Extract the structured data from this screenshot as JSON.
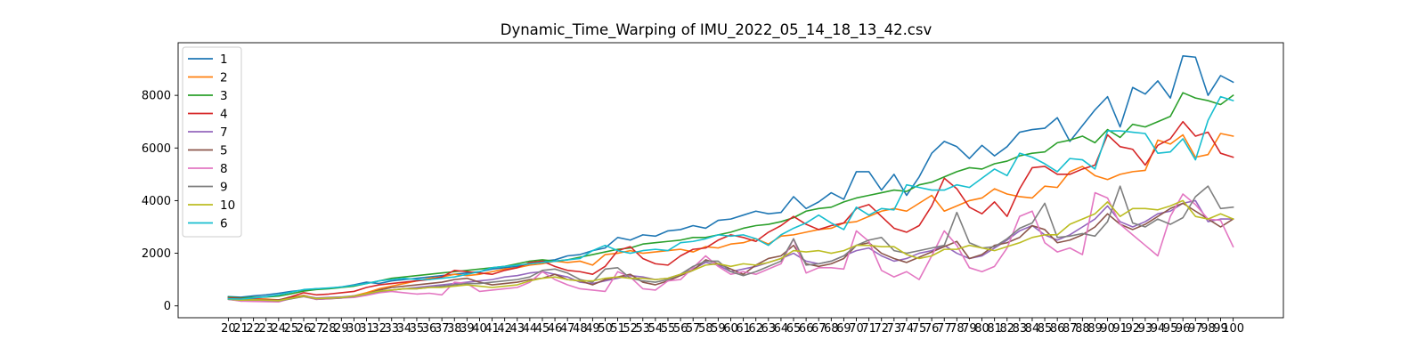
{
  "chart_data": {
    "type": "line",
    "title": "Dynamic_Time_Warping of IMU_2022_05_14_18_13_42.csv",
    "xlabel": "",
    "ylabel": "",
    "x": [
      20,
      21,
      22,
      23,
      24,
      25,
      26,
      27,
      28,
      29,
      30,
      31,
      32,
      33,
      34,
      35,
      36,
      37,
      38,
      39,
      40,
      41,
      42,
      43,
      44,
      45,
      46,
      47,
      48,
      49,
      50,
      51,
      52,
      53,
      54,
      55,
      56,
      57,
      58,
      59,
      60,
      61,
      62,
      63,
      64,
      65,
      66,
      67,
      68,
      69,
      70,
      71,
      72,
      73,
      74,
      75,
      76,
      77,
      78,
      79,
      80,
      81,
      82,
      83,
      84,
      85,
      86,
      87,
      88,
      89,
      90,
      91,
      92,
      93,
      94,
      95,
      96,
      97,
      98,
      99,
      100
    ],
    "x_tick_labels": [
      "20",
      "21",
      "22",
      "23",
      "24",
      "25",
      "26",
      "27",
      "28",
      "29",
      "30",
      "31",
      "32",
      "33",
      "34",
      "35",
      "36",
      "37",
      "38",
      "39",
      "40",
      "41",
      "42",
      "43",
      "44",
      "45",
      "46",
      "47",
      "48",
      "49",
      "50",
      "51",
      "52",
      "53",
      "54",
      "55",
      "56",
      "57",
      "58",
      "59",
      "60",
      "61",
      "62",
      "63",
      "64",
      "65",
      "66",
      "67",
      "68",
      "69",
      "70",
      "71",
      "72",
      "73",
      "74",
      "75",
      "76",
      "77",
      "78",
      "79",
      "80",
      "81",
      "82",
      "83",
      "84",
      "85",
      "86",
      "87",
      "88",
      "89",
      "90",
      "91",
      "92",
      "93",
      "94",
      "95",
      "96",
      "97",
      "98",
      "99",
      "100"
    ],
    "y_ticks": [
      0,
      2000,
      4000,
      6000,
      8000
    ],
    "y_tick_labels": [
      "0",
      "2000",
      "4000",
      "6000",
      "8000"
    ],
    "ylim": [
      -450,
      10000
    ],
    "grid": false,
    "legend_placement": "upper-left",
    "series": [
      {
        "name": "1",
        "color": "#1f77b4",
        "values": [
          350,
          330,
          380,
          420,
          480,
          550,
          600,
          650,
          670,
          720,
          800,
          900,
          850,
          950,
          1000,
          1050,
          1100,
          1150,
          1200,
          1250,
          1300,
          1400,
          1450,
          1500,
          1600,
          1700,
          1750,
          1900,
          1950,
          2100,
          2200,
          2600,
          2500,
          2700,
          2650,
          2850,
          2900,
          3050,
          2950,
          3250,
          3300,
          3450,
          3600,
          3500,
          3550,
          4150,
          3700,
          3950,
          4300,
          4050,
          5100,
          5100,
          4400,
          5000,
          4200,
          4900,
          5800,
          6250,
          6050,
          5600,
          6100,
          5700,
          6050,
          6600,
          6700,
          6750,
          7150,
          6250,
          6850,
          7450,
          7950,
          6800,
          8300,
          8050,
          8550,
          7900,
          9500,
          9450,
          8000,
          8750,
          8500
        ]
      },
      {
        "name": "2",
        "color": "#ff7f0e",
        "values": [
          280,
          250,
          270,
          260,
          230,
          320,
          400,
          280,
          300,
          320,
          380,
          500,
          650,
          750,
          850,
          950,
          1050,
          1100,
          1200,
          1150,
          1200,
          1300,
          1400,
          1450,
          1550,
          1600,
          1700,
          1650,
          1700,
          1550,
          1950,
          2000,
          2100,
          2000,
          2050,
          2100,
          2150,
          2050,
          2250,
          2200,
          2350,
          2400,
          2550,
          2350,
          2650,
          2700,
          2800,
          2900,
          2950,
          3150,
          3200,
          3400,
          3600,
          3700,
          3600,
          3900,
          4200,
          3600,
          3800,
          4000,
          4100,
          4450,
          4250,
          4150,
          4100,
          4550,
          4500,
          5100,
          5300,
          4950,
          4800,
          5000,
          5100,
          5150,
          6300,
          6150,
          6500,
          5650,
          5750,
          6550,
          6450
        ]
      },
      {
        "name": "3",
        "color": "#2ca02c",
        "values": [
          330,
          300,
          320,
          340,
          370,
          460,
          560,
          620,
          650,
          700,
          750,
          850,
          950,
          1050,
          1100,
          1150,
          1200,
          1250,
          1300,
          1350,
          1400,
          1450,
          1500,
          1600,
          1700,
          1750,
          1700,
          1750,
          1850,
          1950,
          2050,
          2150,
          2200,
          2350,
          2400,
          2450,
          2500,
          2600,
          2600,
          2700,
          2800,
          2950,
          3050,
          3100,
          3200,
          3350,
          3600,
          3700,
          3750,
          3950,
          4100,
          4200,
          4300,
          4400,
          4350,
          4600,
          4700,
          4900,
          5100,
          5250,
          5200,
          5400,
          5500,
          5700,
          5800,
          5850,
          6200,
          6300,
          6450,
          6200,
          6700,
          6400,
          6900,
          6800,
          7000,
          7200,
          8100,
          7900,
          7800,
          7650,
          8000
        ]
      },
      {
        "name": "4",
        "color": "#d62728",
        "values": [
          300,
          280,
          260,
          240,
          220,
          350,
          500,
          420,
          450,
          500,
          550,
          700,
          800,
          850,
          900,
          950,
          1000,
          1100,
          1350,
          1300,
          1250,
          1200,
          1350,
          1450,
          1650,
          1700,
          1500,
          1350,
          1300,
          1200,
          1500,
          2100,
          2250,
          1800,
          1600,
          1550,
          1900,
          2150,
          2200,
          2500,
          2700,
          2600,
          2450,
          2800,
          3050,
          3400,
          3100,
          2900,
          3050,
          3150,
          3700,
          3850,
          3400,
          2950,
          2800,
          3050,
          3800,
          4850,
          4450,
          3750,
          3500,
          3950,
          3400,
          4450,
          5250,
          5300,
          5000,
          5000,
          5200,
          5350,
          6500,
          6050,
          5950,
          5350,
          6100,
          6350,
          7000,
          6450,
          6600,
          5800,
          5650
        ]
      },
      {
        "name": "7",
        "color": "#9467bd",
        "values": [
          280,
          180,
          200,
          190,
          210,
          280,
          380,
          300,
          320,
          340,
          380,
          450,
          550,
          600,
          650,
          700,
          750,
          800,
          850,
          900,
          950,
          1000,
          1100,
          1150,
          1250,
          1300,
          1200,
          1100,
          900,
          850,
          950,
          1050,
          1150,
          1100,
          1000,
          1050,
          1200,
          1400,
          1650,
          1550,
          1300,
          1400,
          1500,
          1650,
          1800,
          2000,
          1700,
          1600,
          1700,
          1900,
          2100,
          2200,
          1900,
          1700,
          1800,
          2000,
          2100,
          2300,
          2000,
          1800,
          1900,
          2200,
          2500,
          2850,
          3050,
          2700,
          2500,
          2700,
          3000,
          3300,
          3800,
          3200,
          3000,
          3200,
          3500,
          3600,
          3900,
          4000,
          3200,
          3300,
          3300
        ]
      },
      {
        "name": "5",
        "color": "#8c564b",
        "values": [
          250,
          200,
          210,
          220,
          230,
          300,
          380,
          250,
          270,
          300,
          350,
          450,
          600,
          700,
          750,
          800,
          850,
          900,
          1000,
          1050,
          900,
          800,
          850,
          900,
          1000,
          1050,
          1200,
          1000,
          950,
          800,
          1000,
          1100,
          1200,
          900,
          800,
          950,
          1150,
          1350,
          1750,
          1600,
          1400,
          1200,
          1550,
          1800,
          1900,
          2300,
          1600,
          1500,
          1600,
          1800,
          2300,
          2400,
          2000,
          1800,
          1650,
          1850,
          2050,
          2250,
          2450,
          1800,
          1950,
          2300,
          2400,
          2600,
          3050,
          2900,
          2400,
          2500,
          2700,
          3000,
          3500,
          3100,
          2900,
          3100,
          3400,
          3700,
          3900,
          3600,
          3300,
          3000,
          3300
        ]
      },
      {
        "name": "8",
        "color": "#e377c2",
        "values": [
          250,
          180,
          170,
          160,
          150,
          280,
          350,
          250,
          280,
          300,
          320,
          400,
          500,
          550,
          500,
          450,
          480,
          420,
          900,
          850,
          550,
          600,
          650,
          700,
          900,
          1300,
          1000,
          800,
          650,
          600,
          550,
          1300,
          1100,
          650,
          600,
          950,
          1000,
          1450,
          1900,
          1500,
          1200,
          1300,
          1200,
          1400,
          1600,
          2550,
          1250,
          1450,
          1450,
          1400,
          2850,
          2450,
          1350,
          1100,
          1300,
          1000,
          1900,
          2850,
          2300,
          1450,
          1300,
          1500,
          2200,
          3400,
          3600,
          2400,
          2050,
          2200,
          1950,
          4300,
          4100,
          3100,
          2700,
          2300,
          1900,
          3400,
          4250,
          3850,
          3300,
          3250,
          2250
        ]
      },
      {
        "name": "9",
        "color": "#7f7f7f",
        "values": [
          250,
          220,
          230,
          210,
          190,
          270,
          360,
          270,
          290,
          310,
          360,
          450,
          550,
          600,
          650,
          650,
          700,
          750,
          800,
          850,
          850,
          900,
          950,
          1000,
          1100,
          1350,
          1400,
          1250,
          1000,
          900,
          1400,
          1450,
          1050,
          950,
          900,
          1000,
          1200,
          1500,
          1700,
          1700,
          1300,
          1150,
          1300,
          1500,
          1700,
          2550,
          1550,
          1600,
          1700,
          1900,
          2300,
          2500,
          2600,
          2100,
          2000,
          2100,
          2200,
          2300,
          3550,
          2400,
          2200,
          2250,
          2550,
          2950,
          3150,
          3900,
          2600,
          2650,
          2750,
          2650,
          3200,
          4550,
          3150,
          3000,
          3300,
          3100,
          3350,
          4150,
          4550,
          3700,
          3750
        ]
      },
      {
        "name": "10",
        "color": "#bcbd22",
        "values": [
          260,
          220,
          230,
          220,
          200,
          290,
          370,
          280,
          300,
          320,
          370,
          460,
          560,
          600,
          650,
          650,
          700,
          700,
          750,
          800,
          750,
          700,
          750,
          800,
          950,
          1050,
          1100,
          1000,
          950,
          950,
          1050,
          1100,
          1050,
          1050,
          1000,
          1050,
          1200,
          1350,
          1550,
          1600,
          1500,
          1600,
          1550,
          1650,
          1800,
          2100,
          2050,
          2100,
          2000,
          2100,
          2300,
          2300,
          2250,
          2250,
          1950,
          1800,
          1900,
          2150,
          2150,
          2300,
          2200,
          2100,
          2250,
          2400,
          2600,
          2700,
          2700,
          3100,
          3300,
          3500,
          3950,
          3400,
          3700,
          3700,
          3650,
          3800,
          4000,
          3400,
          3300,
          3500,
          3300
        ]
      },
      {
        "name": "6",
        "color": "#17becf",
        "values": [
          270,
          260,
          300,
          350,
          420,
          520,
          620,
          650,
          680,
          720,
          780,
          850,
          950,
          1000,
          1050,
          1000,
          1000,
          1050,
          1100,
          1200,
          1300,
          1450,
          1500,
          1550,
          1600,
          1650,
          1700,
          1750,
          1800,
          2100,
          2300,
          2100,
          2000,
          2100,
          2150,
          2100,
          2400,
          2450,
          2550,
          2700,
          2650,
          2700,
          2550,
          2300,
          2700,
          2950,
          3150,
          3450,
          3150,
          2900,
          3750,
          3450,
          3700,
          3650,
          4600,
          4500,
          4400,
          4400,
          4600,
          4500,
          4850,
          5200,
          4950,
          5800,
          5650,
          5400,
          5100,
          5600,
          5550,
          5200,
          6650,
          6650,
          6600,
          6550,
          5800,
          5850,
          6350,
          5550,
          7050,
          7950,
          7800
        ]
      }
    ]
  }
}
